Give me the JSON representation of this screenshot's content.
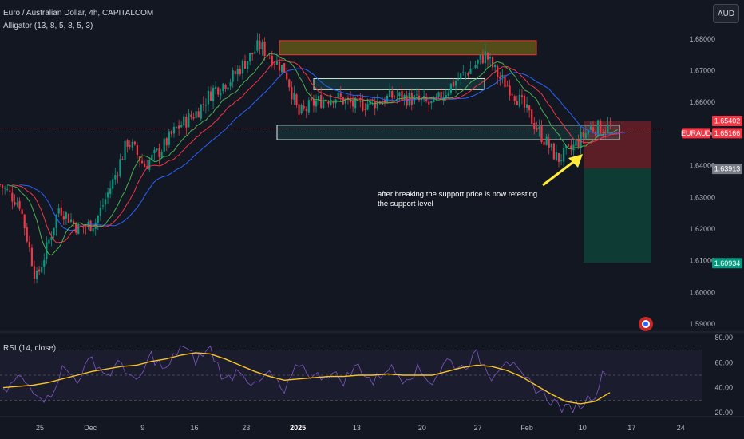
{
  "header": {
    "title": "Euro / Australian Dollar, 4h, CAPITALCOM",
    "indicator": "Alligator (13, 8, 5, 8, 5, 3)",
    "currency_button": "AUD"
  },
  "rsi_panel": {
    "label": "RSI (14, close)"
  },
  "note_text": "after breaking the support price is now retesting the support level",
  "colors": {
    "background": "#131722",
    "candle_up": "#089981",
    "candle_down": "#f23645",
    "alligator_jaw": "#2962ff",
    "alligator_teeth": "#f23645",
    "alligator_lips": "#4caf50",
    "rsi_line": "#7e57c2",
    "rsi_ma": "#f7c325",
    "resistance_box": "#8a7a14",
    "arrow": "#ffeb3b",
    "stop_zone": "#5c1e26",
    "target_zone": "#0e3b33"
  },
  "chart_data": [
    {
      "type": "candlestick",
      "title": "Euro / Australian Dollar, 4h, CAPITALCOM",
      "indicator": "Alligator (13, 8, 5, 8, 5, 3)",
      "x_ticks": [
        "25",
        "Dec",
        "9",
        "16",
        "23",
        "2025",
        "13",
        "20",
        "27",
        "Feb",
        "10",
        "17",
        "24"
      ],
      "y_ticks": [
        1.59,
        1.6,
        1.61,
        1.62,
        1.63,
        1.64,
        1.65,
        1.66,
        1.67,
        1.68
      ],
      "ylim": [
        1.589,
        1.684
      ],
      "price_labels": [
        {
          "label": "1.65402",
          "value": 1.65402,
          "color": "#f23645"
        },
        {
          "label": "EURAUD",
          "value": 1.65166,
          "color": "#f23645"
        },
        {
          "label": "1.65166",
          "value": 1.65166,
          "color": "#f23645"
        },
        {
          "label": "1.63913",
          "value": 1.63913,
          "color": "#787b86"
        },
        {
          "label": "1.60934",
          "value": 1.60934,
          "color": "#089981"
        }
      ],
      "price_path": [
        {
          "t": 0,
          "p": 1.634
        },
        {
          "t": 0.03,
          "p": 1.628
        },
        {
          "t": 0.055,
          "p": 1.604
        },
        {
          "t": 0.07,
          "p": 1.613
        },
        {
          "t": 0.09,
          "p": 1.627
        },
        {
          "t": 0.12,
          "p": 1.62
        },
        {
          "t": 0.145,
          "p": 1.622
        },
        {
          "t": 0.17,
          "p": 1.634
        },
        {
          "t": 0.195,
          "p": 1.648
        },
        {
          "t": 0.22,
          "p": 1.64
        },
        {
          "t": 0.245,
          "p": 1.645
        },
        {
          "t": 0.27,
          "p": 1.652
        },
        {
          "t": 0.3,
          "p": 1.657
        },
        {
          "t": 0.325,
          "p": 1.664
        },
        {
          "t": 0.35,
          "p": 1.667
        },
        {
          "t": 0.375,
          "p": 1.673
        },
        {
          "t": 0.395,
          "p": 1.678
        },
        {
          "t": 0.415,
          "p": 1.674
        },
        {
          "t": 0.435,
          "p": 1.67
        },
        {
          "t": 0.455,
          "p": 1.656
        },
        {
          "t": 0.48,
          "p": 1.66
        },
        {
          "t": 0.51,
          "p": 1.662
        },
        {
          "t": 0.54,
          "p": 1.659
        },
        {
          "t": 0.57,
          "p": 1.66
        },
        {
          "t": 0.6,
          "p": 1.662
        },
        {
          "t": 0.63,
          "p": 1.661
        },
        {
          "t": 0.66,
          "p": 1.659
        },
        {
          "t": 0.69,
          "p": 1.666
        },
        {
          "t": 0.72,
          "p": 1.671
        },
        {
          "t": 0.74,
          "p": 1.675
        },
        {
          "t": 0.76,
          "p": 1.668
        },
        {
          "t": 0.78,
          "p": 1.664
        },
        {
          "t": 0.8,
          "p": 1.658
        },
        {
          "t": 0.83,
          "p": 1.648
        },
        {
          "t": 0.85,
          "p": 1.642
        },
        {
          "t": 0.87,
          "p": 1.645
        },
        {
          "t": 0.9,
          "p": 1.652
        }
      ],
      "resistance_zone": {
        "y": [
          1.675,
          1.6795
        ]
      },
      "range_zone": {
        "y": [
          1.664,
          1.6675
        ]
      },
      "support_zone": {
        "y": [
          1.6482,
          1.6528
        ]
      },
      "stop_zone": {
        "y": [
          1.63913,
          1.65402
        ]
      },
      "target_zone": {
        "y": [
          1.60934,
          1.63913
        ]
      }
    },
    {
      "type": "line",
      "title": "RSI (14, close)",
      "y_ticks": [
        20,
        40,
        60,
        80
      ],
      "ylim": [
        18,
        82
      ],
      "guide_lines": [
        70,
        50,
        30
      ],
      "series": [
        {
          "name": "RSI",
          "values": [
            35,
            48,
            40,
            30,
            55,
            47,
            63,
            50,
            60,
            42,
            66,
            53,
            74,
            62,
            71,
            45,
            56,
            40,
            52,
            35,
            60,
            48,
            52,
            46,
            58,
            44,
            57,
            48,
            54,
            45,
            62,
            56,
            66,
            50,
            64,
            48,
            40,
            30,
            22,
            26,
            36,
            62
          ]
        },
        {
          "name": "RSI-based MA",
          "values": [
            40,
            41,
            42,
            44,
            47,
            50,
            53,
            55,
            57,
            58,
            61,
            63,
            66,
            68,
            67,
            63,
            58,
            53,
            49,
            46,
            47,
            48,
            49,
            49,
            50,
            50,
            51,
            50,
            50,
            50,
            53,
            56,
            58,
            57,
            54,
            49,
            42,
            35,
            29,
            27,
            29,
            36
          ]
        }
      ]
    }
  ]
}
